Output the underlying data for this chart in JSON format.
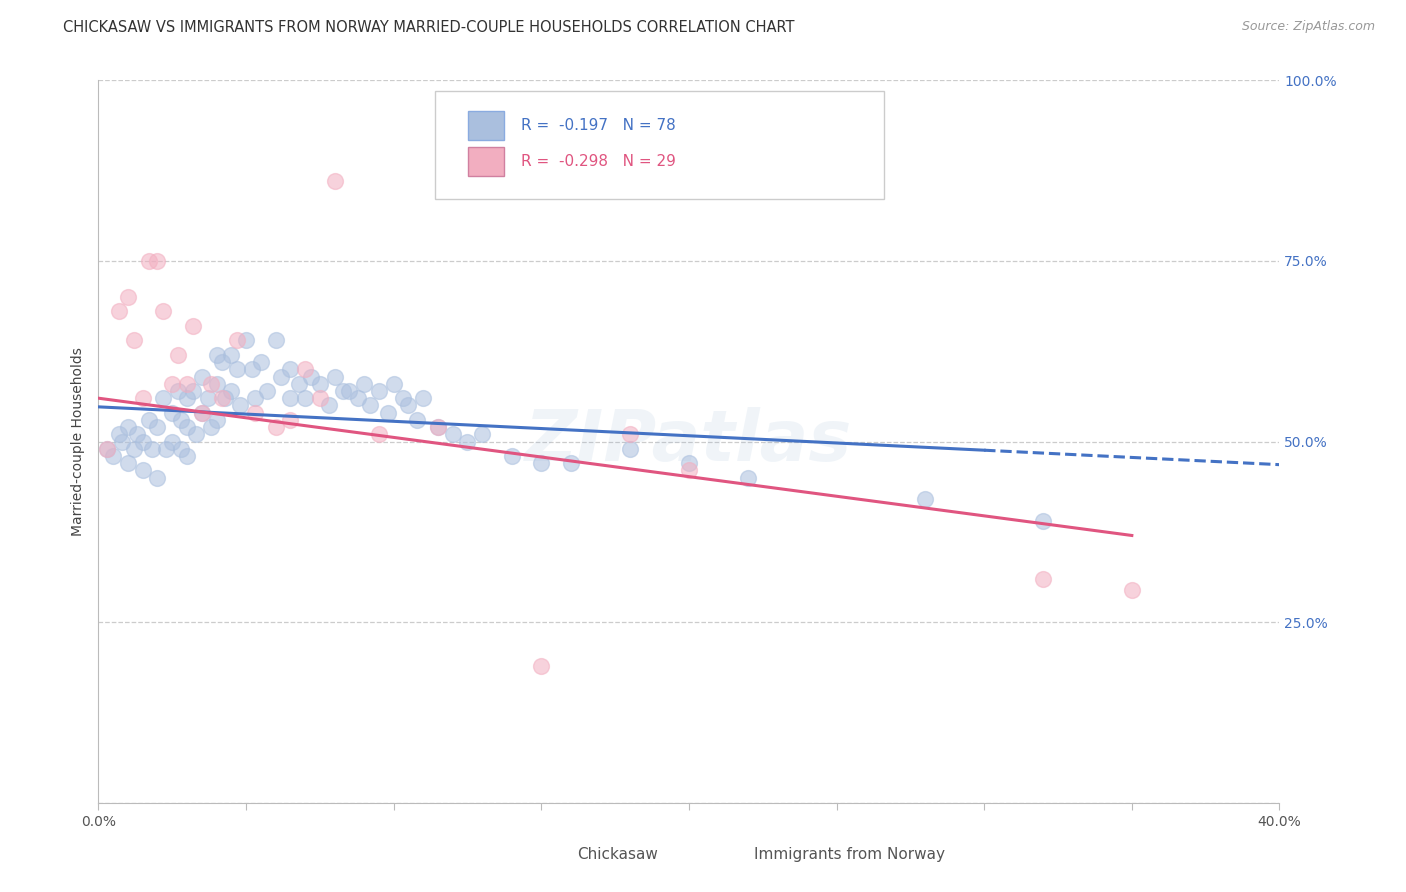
{
  "title": "CHICKASAW VS IMMIGRANTS FROM NORWAY MARRIED-COUPLE HOUSEHOLDS CORRELATION CHART",
  "source": "Source: ZipAtlas.com",
  "ylabel": "Married-couple Households",
  "xlim": [
    0.0,
    0.4
  ],
  "ylim": [
    0.0,
    1.0
  ],
  "yticks": [
    0.0,
    0.25,
    0.5,
    0.75,
    1.0
  ],
  "ytick_labels": [
    "",
    "25.0%",
    "50.0%",
    "75.0%",
    "100.0%"
  ],
  "xticks": [
    0.0,
    0.05,
    0.1,
    0.15,
    0.2,
    0.25,
    0.3,
    0.35,
    0.4
  ],
  "xtick_labels": [
    "0.0%",
    "",
    "",
    "",
    "",
    "",
    "",
    "",
    "40.0%"
  ],
  "blue_fill": "#aabfde",
  "blue_edge": "#7090c0",
  "blue_line": "#4472C4",
  "pink_fill": "#f2aec0",
  "pink_edge": "#d07090",
  "pink_line": "#e05580",
  "right_tick_color": "#4472C4",
  "legend_blue_label": "Chickasaw",
  "legend_pink_label": "Immigrants from Norway",
  "R_blue": "-0.197",
  "N_blue": "78",
  "R_pink": "-0.298",
  "N_pink": "29",
  "watermark": "ZIPatlas",
  "blue_scatter_x": [
    0.003,
    0.005,
    0.007,
    0.008,
    0.01,
    0.01,
    0.012,
    0.013,
    0.015,
    0.015,
    0.017,
    0.018,
    0.02,
    0.02,
    0.022,
    0.023,
    0.025,
    0.025,
    0.027,
    0.028,
    0.028,
    0.03,
    0.03,
    0.03,
    0.032,
    0.033,
    0.035,
    0.035,
    0.037,
    0.038,
    0.04,
    0.04,
    0.04,
    0.042,
    0.043,
    0.045,
    0.045,
    0.047,
    0.048,
    0.05,
    0.052,
    0.053,
    0.055,
    0.057,
    0.06,
    0.062,
    0.065,
    0.065,
    0.068,
    0.07,
    0.072,
    0.075,
    0.078,
    0.08,
    0.083,
    0.085,
    0.088,
    0.09,
    0.092,
    0.095,
    0.098,
    0.1,
    0.103,
    0.105,
    0.108,
    0.11,
    0.115,
    0.12,
    0.125,
    0.13,
    0.14,
    0.15,
    0.16,
    0.18,
    0.2,
    0.22,
    0.28,
    0.32
  ],
  "blue_scatter_y": [
    0.49,
    0.48,
    0.51,
    0.5,
    0.52,
    0.47,
    0.49,
    0.51,
    0.5,
    0.46,
    0.53,
    0.49,
    0.52,
    0.45,
    0.56,
    0.49,
    0.54,
    0.5,
    0.57,
    0.53,
    0.49,
    0.56,
    0.52,
    0.48,
    0.57,
    0.51,
    0.59,
    0.54,
    0.56,
    0.52,
    0.62,
    0.58,
    0.53,
    0.61,
    0.56,
    0.62,
    0.57,
    0.6,
    0.55,
    0.64,
    0.6,
    0.56,
    0.61,
    0.57,
    0.64,
    0.59,
    0.6,
    0.56,
    0.58,
    0.56,
    0.59,
    0.58,
    0.55,
    0.59,
    0.57,
    0.57,
    0.56,
    0.58,
    0.55,
    0.57,
    0.54,
    0.58,
    0.56,
    0.55,
    0.53,
    0.56,
    0.52,
    0.51,
    0.5,
    0.51,
    0.48,
    0.47,
    0.47,
    0.49,
    0.47,
    0.45,
    0.42,
    0.39
  ],
  "pink_scatter_x": [
    0.003,
    0.007,
    0.01,
    0.012,
    0.015,
    0.017,
    0.02,
    0.022,
    0.025,
    0.027,
    0.03,
    0.032,
    0.035,
    0.038,
    0.042,
    0.047,
    0.053,
    0.06,
    0.065,
    0.07,
    0.075,
    0.08,
    0.095,
    0.115,
    0.15,
    0.18,
    0.2,
    0.32,
    0.35
  ],
  "pink_scatter_y": [
    0.49,
    0.68,
    0.7,
    0.64,
    0.56,
    0.75,
    0.75,
    0.68,
    0.58,
    0.62,
    0.58,
    0.66,
    0.54,
    0.58,
    0.56,
    0.64,
    0.54,
    0.52,
    0.53,
    0.6,
    0.56,
    0.86,
    0.51,
    0.52,
    0.19,
    0.51,
    0.46,
    0.31,
    0.295
  ],
  "blue_line_x": [
    0.0,
    0.4
  ],
  "blue_line_y": [
    0.548,
    0.468
  ],
  "pink_line_x": [
    0.0,
    0.35
  ],
  "pink_line_y": [
    0.56,
    0.37
  ],
  "scatter_size": 130,
  "scatter_alpha": 0.55,
  "watermark_fontsize": 52,
  "watermark_alpha": 0.12,
  "title_fontsize": 10.5,
  "source_fontsize": 9,
  "ylabel_fontsize": 10,
  "tick_fontsize": 10,
  "legend_fontsize": 11
}
